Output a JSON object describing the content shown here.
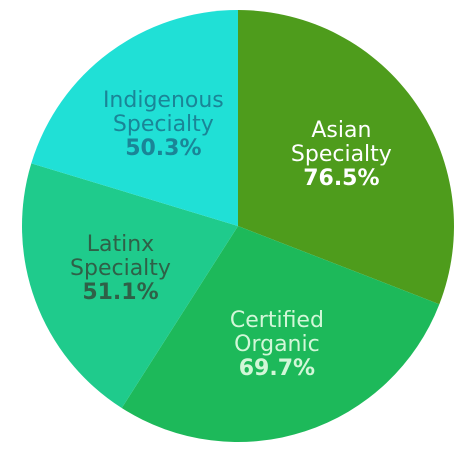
{
  "chart_data": {
    "type": "pie",
    "categories": [
      "Asian Specialty",
      "Certified Organic",
      "Latinx Specialty",
      "Indigenous Specialty"
    ],
    "values": [
      76.5,
      69.7,
      51.1,
      50.3
    ],
    "value_labels": [
      "76.5%",
      "69.7%",
      "51.1%",
      "50.3%"
    ],
    "colors": [
      "#4e9c1c",
      "#1db95a",
      "#1fcb8c",
      "#20e0d6"
    ],
    "label_colors": [
      "#ffffff",
      "#d2f7d8",
      "#2f6047",
      "#1a8597"
    ]
  }
}
